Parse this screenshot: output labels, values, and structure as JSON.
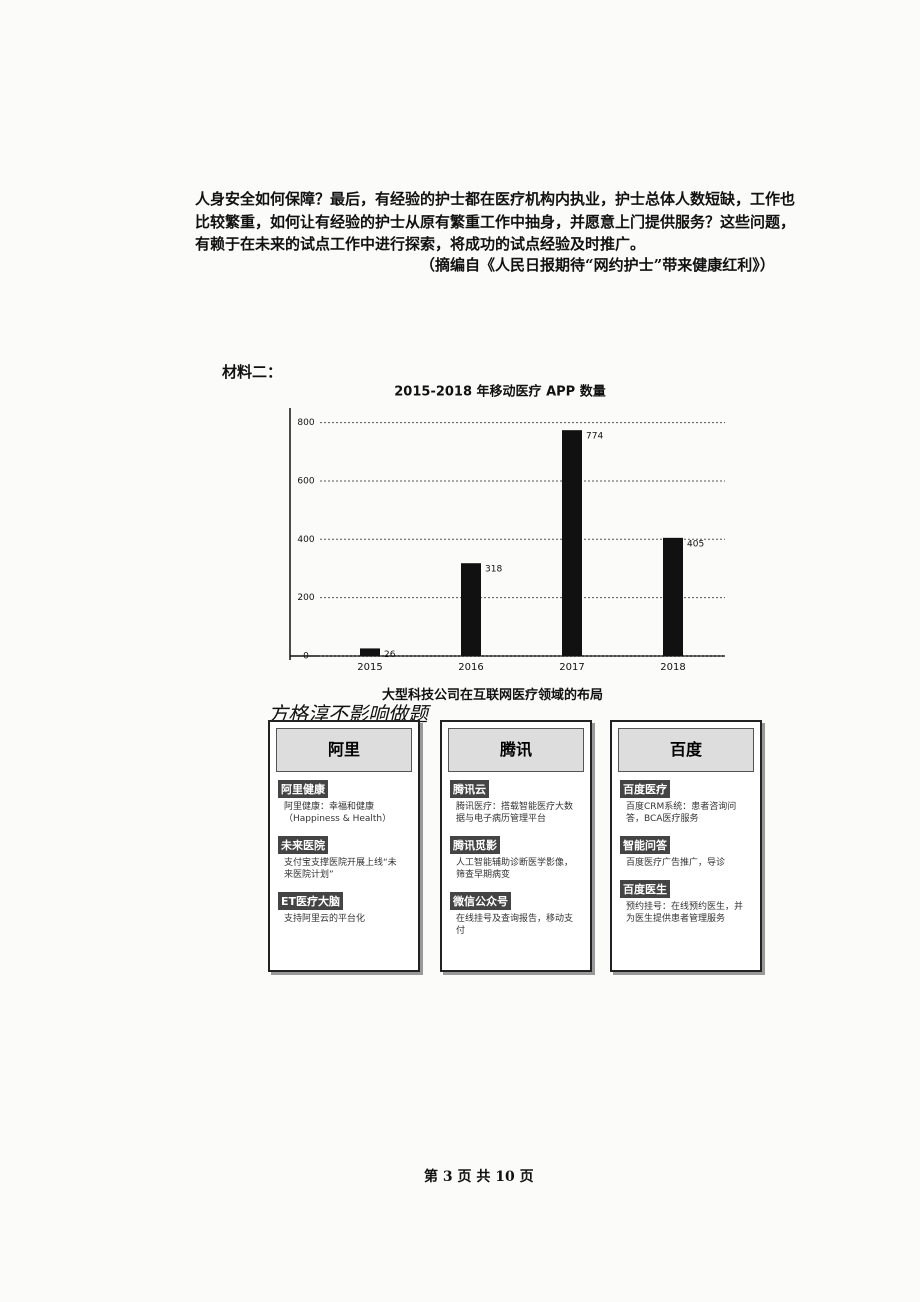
{
  "paragraph": {
    "lines": [
      "人身安全如何保障？最后，有经验的护士都在医疗机构内执业，护士总体人数短缺，工作也",
      "比较繁重，如何让有经验的护士从原有繁重工作中抽身，并愿意上门提供服务？这些问题，",
      "有赖于在未来的试点工作中进行探索，将成功的试点经验及时推广。"
    ],
    "source": "（摘编自《人民日报期待“网约护士”带来健康红利》）"
  },
  "material_label": "材料二：",
  "chart_data": {
    "type": "bar",
    "title": "2015-2018 年移动医疗 APP 数量",
    "categories": [
      "2015",
      "2016",
      "2017",
      "2018"
    ],
    "values": [
      26,
      318,
      774,
      405
    ],
    "color": "#111111",
    "ylim": [
      0,
      850
    ],
    "yticks": [
      0,
      200,
      400,
      600,
      800
    ],
    "grid": true
  },
  "layout_title": "大型科技公司在互联网医疗领域的布局",
  "handwriting": "方格淳不影响做题",
  "companies": [
    {
      "name": "阿里",
      "items": [
        {
          "title": "阿里健康",
          "text": "阿里健康：幸福和健康（Happiness & Health）"
        },
        {
          "title": "未来医院",
          "text": "支付宝支撑医院开展上线“未来医院计划”"
        },
        {
          "title": "ET医疗大脑",
          "text": "支持阿里云的平台化"
        }
      ]
    },
    {
      "name": "腾讯",
      "items": [
        {
          "title": "腾讯云",
          "text": "腾讯医疗：搭载智能医疗大数据与电子病历管理平台"
        },
        {
          "title": "腾讯觅影",
          "text": "人工智能辅助诊断医学影像，筛查早期病变"
        },
        {
          "title": "微信公众号",
          "text": "在线挂号及查询报告，移动支付"
        }
      ]
    },
    {
      "name": "百度",
      "items": [
        {
          "title": "百度医疗",
          "text": "百度CRM系统：患者咨询问答，BCA医疗服务"
        },
        {
          "title": "智能问答",
          "text": "百度医疗广告推广，导诊"
        },
        {
          "title": "百度医生",
          "text": "预约挂号：在线预约医生，并为医生提供患者管理服务"
        }
      ]
    }
  ],
  "footer": "第 3 页 共 10 页"
}
